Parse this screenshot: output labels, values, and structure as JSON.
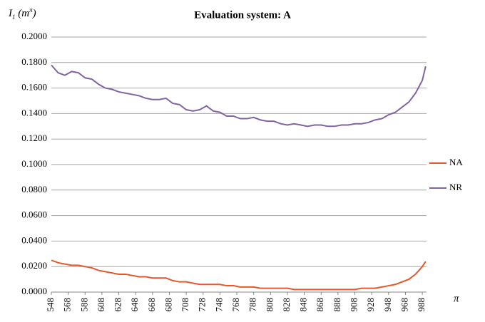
{
  "chart_data": {
    "type": "line",
    "title": "Evaluation system: A",
    "y_label": [
      "I",
      "1",
      " (m",
      "π",
      ")"
    ],
    "x_label": "π",
    "x": [
      548,
      556,
      564,
      572,
      580,
      588,
      596,
      604,
      612,
      620,
      628,
      636,
      644,
      652,
      660,
      668,
      676,
      684,
      692,
      700,
      708,
      716,
      724,
      732,
      740,
      748,
      756,
      764,
      772,
      780,
      788,
      796,
      804,
      812,
      820,
      828,
      836,
      844,
      852,
      860,
      868,
      876,
      884,
      892,
      900,
      908,
      916,
      924,
      932,
      940,
      948,
      956,
      964,
      972,
      980,
      988,
      992
    ],
    "series": [
      {
        "name": "NA",
        "color": "#e8572a",
        "values": [
          0.025,
          0.023,
          0.022,
          0.021,
          0.021,
          0.02,
          0.019,
          0.017,
          0.016,
          0.015,
          0.014,
          0.014,
          0.013,
          0.012,
          0.012,
          0.011,
          0.011,
          0.011,
          0.009,
          0.008,
          0.008,
          0.007,
          0.006,
          0.006,
          0.006,
          0.006,
          0.005,
          0.005,
          0.004,
          0.004,
          0.004,
          0.003,
          0.003,
          0.003,
          0.003,
          0.003,
          0.002,
          0.002,
          0.002,
          0.002,
          0.002,
          0.002,
          0.002,
          0.002,
          0.002,
          0.002,
          0.003,
          0.003,
          0.003,
          0.004,
          0.005,
          0.006,
          0.008,
          0.01,
          0.014,
          0.02,
          0.024
        ]
      },
      {
        "name": "NR",
        "color": "#8064a2",
        "values": [
          0.178,
          0.172,
          0.17,
          0.173,
          0.172,
          0.168,
          0.167,
          0.163,
          0.16,
          0.159,
          0.157,
          0.156,
          0.155,
          0.154,
          0.152,
          0.151,
          0.151,
          0.152,
          0.148,
          0.147,
          0.143,
          0.142,
          0.143,
          0.146,
          0.142,
          0.141,
          0.138,
          0.138,
          0.136,
          0.136,
          0.137,
          0.135,
          0.134,
          0.134,
          0.132,
          0.131,
          0.132,
          0.131,
          0.13,
          0.131,
          0.131,
          0.13,
          0.13,
          0.131,
          0.131,
          0.132,
          0.132,
          0.133,
          0.135,
          0.136,
          0.139,
          0.141,
          0.145,
          0.149,
          0.156,
          0.166,
          0.177
        ]
      }
    ],
    "xlim": [
      548,
      993
    ],
    "xticks": [
      548,
      568,
      588,
      608,
      628,
      648,
      668,
      688,
      708,
      728,
      748,
      768,
      788,
      808,
      828,
      848,
      868,
      888,
      908,
      928,
      948,
      968,
      988
    ],
    "ylim": [
      0,
      0.2
    ],
    "yticks": [
      {
        "value": 0,
        "label": "0.0000"
      },
      {
        "value": 0.02,
        "label": "0.0200"
      },
      {
        "value": 0.04,
        "label": "0.0400"
      },
      {
        "value": 0.06,
        "label": "0.0600"
      },
      {
        "value": 0.08,
        "label": "0.0800"
      },
      {
        "value": 0.1,
        "label": "0.1000"
      },
      {
        "value": 0.12,
        "label": "0.1200"
      },
      {
        "value": 0.14,
        "label": "0.1400"
      },
      {
        "value": 0.16,
        "label": "0.1600"
      },
      {
        "value": 0.18,
        "label": "0.1800"
      },
      {
        "value": 0.2,
        "label": "0.2000"
      }
    ],
    "grid": true,
    "legend": "right"
  }
}
